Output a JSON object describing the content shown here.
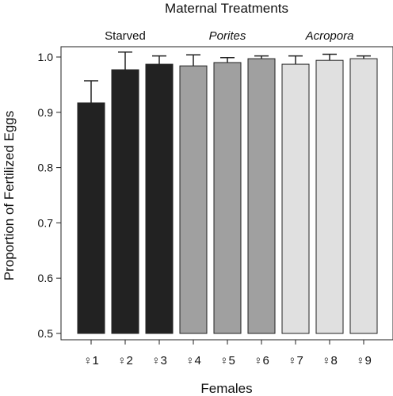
{
  "chart_data": {
    "type": "bar",
    "title": "Maternal Treatments",
    "xlabel": "Females",
    "ylabel": "Proportion of Fertilized Eggs",
    "ylim": [
      0.5,
      1.0
    ],
    "yticks": [
      "0.5",
      "0.6",
      "0.7",
      "0.8",
      "0.9",
      "1.0"
    ],
    "categories": [
      "♀1",
      "♀2",
      "♀3",
      "♀4",
      "♀5",
      "♀6",
      "♀7",
      "♀8",
      "♀9"
    ],
    "values": [
      0.917,
      0.977,
      0.987,
      0.984,
      0.99,
      0.997,
      0.987,
      0.994,
      0.997
    ],
    "errors": [
      0.04,
      0.032,
      0.015,
      0.02,
      0.009,
      0.005,
      0.015,
      0.011,
      0.005
    ],
    "groups": [
      {
        "label": "Starved",
        "italic": false,
        "color": "#222222",
        "indices": [
          0,
          1,
          2
        ]
      },
      {
        "label": "Porites",
        "italic": true,
        "color": "#a0a0a0",
        "indices": [
          3,
          4,
          5
        ]
      },
      {
        "label": "Acropora",
        "italic": true,
        "color": "#e0e0e0",
        "indices": [
          6,
          7,
          8
        ]
      }
    ],
    "grid": false,
    "legend": "none"
  }
}
